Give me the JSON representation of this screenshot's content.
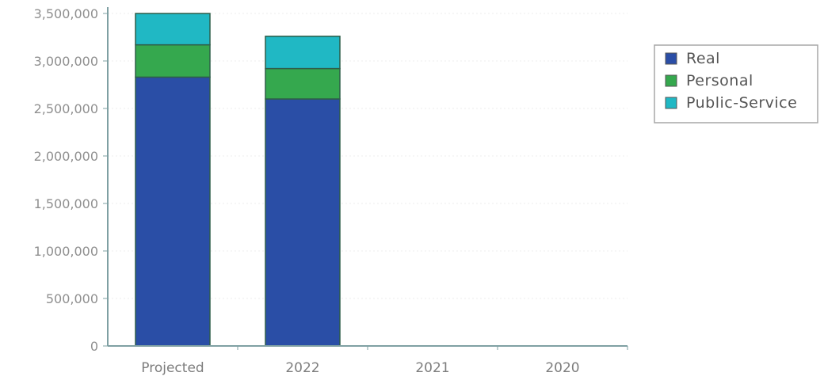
{
  "chart_data": {
    "type": "bar",
    "stacked": true,
    "categories": [
      "Projected",
      "2022",
      "2021",
      "2020"
    ],
    "series": [
      {
        "name": "Real",
        "color": "#2a4ea6",
        "values": [
          2830000,
          2600000,
          0,
          0
        ]
      },
      {
        "name": "Personal",
        "color": "#35a84e",
        "values": [
          340000,
          320000,
          0,
          0
        ]
      },
      {
        "name": "Public-Service",
        "color": "#20b8c4",
        "values": [
          330000,
          340000,
          0,
          0
        ]
      }
    ],
    "y_ticks": [
      "0",
      "500,000",
      "1,000,000",
      "1,500,000",
      "2,000,000",
      "2,500,000",
      "3,000,000",
      "3,500,000"
    ],
    "ylim": [
      0,
      3500000
    ],
    "grid": true,
    "legend_position": "right"
  }
}
